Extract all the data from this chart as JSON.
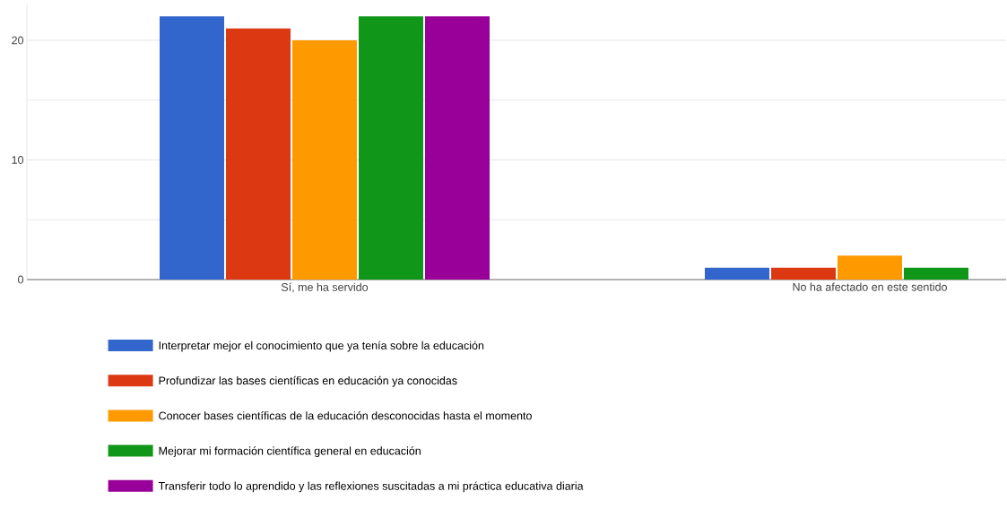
{
  "chart_data": {
    "type": "bar",
    "categories": [
      "Sí, me ha servido",
      "No ha afectado en este sentido"
    ],
    "series": [
      {
        "name": "Interpretar mejor el conocimiento que ya tenía sobre la educación",
        "color": "#3366cc",
        "values": [
          22,
          1
        ]
      },
      {
        "name": "Profundizar las bases científicas en educación ya conocidas",
        "color": "#dc3912",
        "values": [
          21,
          1
        ]
      },
      {
        "name": "Conocer bases científicas de la educación desconocidas hasta el momento",
        "color": "#ff9900",
        "values": [
          20,
          2
        ]
      },
      {
        "name": "Mejorar mi formación científica general en educación",
        "color": "#109618",
        "values": [
          22,
          1
        ]
      },
      {
        "name": "Transferir todo lo aprendido y las reflexiones suscitadas a mi práctica educativa diaria",
        "color": "#990099",
        "values": [
          22,
          0
        ]
      }
    ],
    "yticks": [
      0,
      {
        "value": 5,
        "label": null
      },
      10,
      {
        "value": 15,
        "label": null
      },
      20
    ],
    "ylim": [
      0,
      23
    ],
    "grid": "y",
    "legend": "bottom"
  }
}
